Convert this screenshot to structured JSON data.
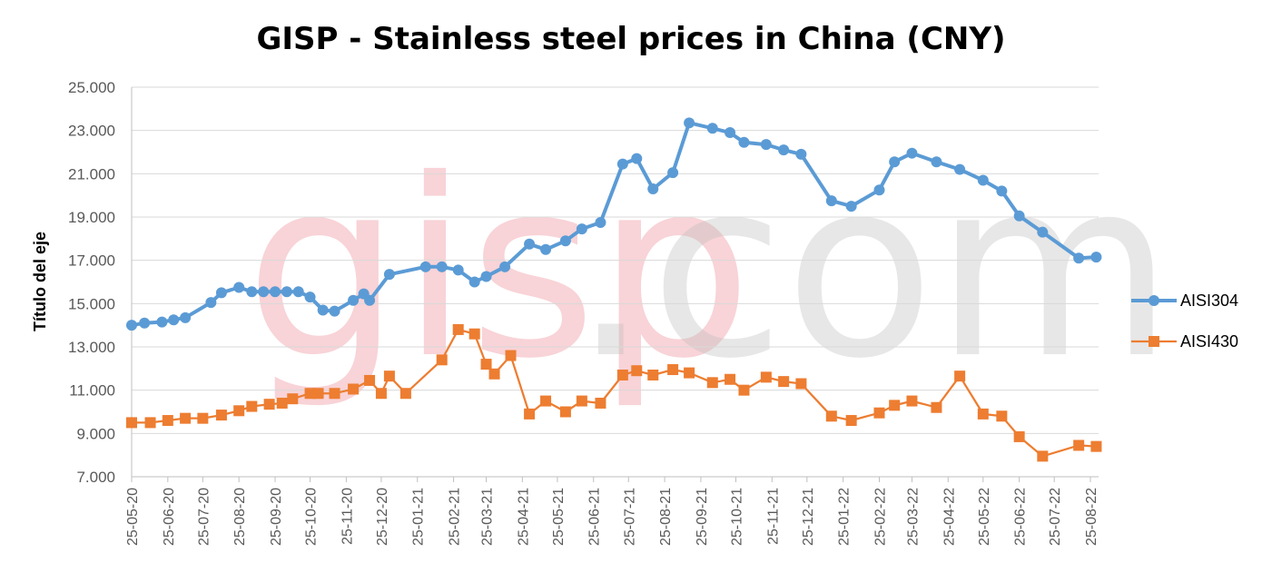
{
  "watermark": {
    "part1": "gisp",
    "part2": ".com"
  },
  "chart_data": {
    "type": "line",
    "title": "GISP - Stainless steel prices in China (CNY)",
    "xlabel": "",
    "ylabel": "Título del eje",
    "ylim": [
      7000,
      25000
    ],
    "yticks": [
      7000,
      9000,
      11000,
      13000,
      15000,
      17000,
      19000,
      21000,
      23000,
      25000
    ],
    "ytick_labels": [
      "7.000",
      "9.000",
      "11.000",
      "13.000",
      "15.000",
      "17.000",
      "19.000",
      "21.000",
      "23.000",
      "25.000"
    ],
    "grid": true,
    "legend_position": "right",
    "x_ticks": [
      "25-05-20",
      "25-06-20",
      "25-07-20",
      "25-08-20",
      "25-09-20",
      "25-10-20",
      "25-11-20",
      "25-12-20",
      "25-01-21",
      "25-02-21",
      "25-03-21",
      "25-04-21",
      "25-05-21",
      "25-06-21",
      "25-07-21",
      "25-08-21",
      "25-09-21",
      "25-10-21",
      "25-11-21",
      "25-12-21",
      "25-01-22",
      "25-02-22",
      "25-03-22",
      "25-04-22",
      "25-05-22",
      "25-06-22",
      "25-07-22",
      "25-08-22"
    ],
    "series": [
      {
        "name": "AISI304",
        "color": "#5b9bd5",
        "marker": "circle",
        "points": [
          [
            "2020-05-25",
            14000
          ],
          [
            "2020-06-05",
            14100
          ],
          [
            "2020-06-20",
            14150
          ],
          [
            "2020-06-30",
            14250
          ],
          [
            "2020-07-10",
            14350
          ],
          [
            "2020-08-01",
            15050
          ],
          [
            "2020-08-10",
            15500
          ],
          [
            "2020-08-25",
            15750
          ],
          [
            "2020-09-05",
            15550
          ],
          [
            "2020-09-15",
            15550
          ],
          [
            "2020-09-25",
            15550
          ],
          [
            "2020-10-05",
            15550
          ],
          [
            "2020-10-15",
            15550
          ],
          [
            "2020-10-25",
            15300
          ],
          [
            "2020-11-05",
            14700
          ],
          [
            "2020-11-15",
            14650
          ],
          [
            "2020-12-01",
            15150
          ],
          [
            "2020-12-10",
            15450
          ],
          [
            "2020-12-15",
            15150
          ],
          [
            "2021-01-01",
            16350
          ],
          [
            "2021-02-01",
            16700
          ],
          [
            "2021-02-15",
            16700
          ],
          [
            "2021-03-01",
            16550
          ],
          [
            "2021-03-15",
            16000
          ],
          [
            "2021-03-25",
            16250
          ],
          [
            "2021-04-10",
            16700
          ],
          [
            "2021-05-01",
            17750
          ],
          [
            "2021-05-15",
            17500
          ],
          [
            "2021-06-01",
            17900
          ],
          [
            "2021-06-15",
            18450
          ],
          [
            "2021-07-01",
            18750
          ],
          [
            "2021-07-20",
            21450
          ],
          [
            "2021-08-01",
            21700
          ],
          [
            "2021-08-15",
            20300
          ],
          [
            "2021-09-01",
            21050
          ],
          [
            "2021-09-15",
            23350
          ],
          [
            "2021-10-05",
            23100
          ],
          [
            "2021-10-20",
            22900
          ],
          [
            "2021-11-01",
            22450
          ],
          [
            "2021-11-20",
            22350
          ],
          [
            "2021-12-05",
            22100
          ],
          [
            "2021-12-20",
            21900
          ],
          [
            "2022-01-15",
            19750
          ],
          [
            "2022-02-01",
            19500
          ],
          [
            "2022-02-25",
            20250
          ],
          [
            "2022-03-10",
            21550
          ],
          [
            "2022-03-25",
            21950
          ],
          [
            "2022-04-15",
            21550
          ],
          [
            "2022-05-05",
            21200
          ],
          [
            "2022-05-25",
            20700
          ],
          [
            "2022-06-10",
            20200
          ],
          [
            "2022-06-25",
            19050
          ],
          [
            "2022-07-15",
            18300
          ],
          [
            "2022-08-15",
            17100
          ],
          [
            "2022-08-30",
            17150
          ]
        ]
      },
      {
        "name": "AISI430",
        "color": "#ed7d31",
        "marker": "square",
        "points": [
          [
            "2020-05-25",
            9500
          ],
          [
            "2020-06-10",
            9500
          ],
          [
            "2020-06-25",
            9600
          ],
          [
            "2020-07-10",
            9700
          ],
          [
            "2020-07-25",
            9700
          ],
          [
            "2020-08-10",
            9850
          ],
          [
            "2020-08-25",
            10050
          ],
          [
            "2020-09-05",
            10250
          ],
          [
            "2020-09-20",
            10350
          ],
          [
            "2020-10-01",
            10400
          ],
          [
            "2020-10-10",
            10600
          ],
          [
            "2020-10-25",
            10850
          ],
          [
            "2020-11-01",
            10850
          ],
          [
            "2020-11-15",
            10850
          ],
          [
            "2020-12-01",
            11050
          ],
          [
            "2020-12-15",
            11450
          ],
          [
            "2020-12-25",
            10850
          ],
          [
            "2021-01-01",
            11650
          ],
          [
            "2021-01-15",
            10850
          ],
          [
            "2021-02-15",
            12400
          ],
          [
            "2021-03-01",
            13800
          ],
          [
            "2021-03-15",
            13600
          ],
          [
            "2021-03-25",
            12200
          ],
          [
            "2021-04-01",
            11750
          ],
          [
            "2021-04-15",
            12600
          ],
          [
            "2021-05-01",
            9900
          ],
          [
            "2021-05-15",
            10500
          ],
          [
            "2021-06-01",
            10000
          ],
          [
            "2021-06-15",
            10500
          ],
          [
            "2021-07-01",
            10400
          ],
          [
            "2021-07-20",
            11700
          ],
          [
            "2021-08-01",
            11900
          ],
          [
            "2021-08-15",
            11700
          ],
          [
            "2021-09-01",
            11950
          ],
          [
            "2021-09-15",
            11800
          ],
          [
            "2021-10-05",
            11350
          ],
          [
            "2021-10-20",
            11500
          ],
          [
            "2021-11-01",
            11000
          ],
          [
            "2021-11-20",
            11600
          ],
          [
            "2021-12-05",
            11400
          ],
          [
            "2021-12-20",
            11300
          ],
          [
            "2022-01-15",
            9800
          ],
          [
            "2022-02-01",
            9600
          ],
          [
            "2022-02-25",
            9950
          ],
          [
            "2022-03-10",
            10300
          ],
          [
            "2022-03-25",
            10500
          ],
          [
            "2022-04-15",
            10200
          ],
          [
            "2022-05-05",
            11650
          ],
          [
            "2022-05-25",
            9900
          ],
          [
            "2022-06-10",
            9800
          ],
          [
            "2022-06-25",
            8850
          ],
          [
            "2022-07-15",
            7950
          ],
          [
            "2022-08-15",
            8450
          ],
          [
            "2022-08-30",
            8400
          ]
        ]
      }
    ]
  }
}
